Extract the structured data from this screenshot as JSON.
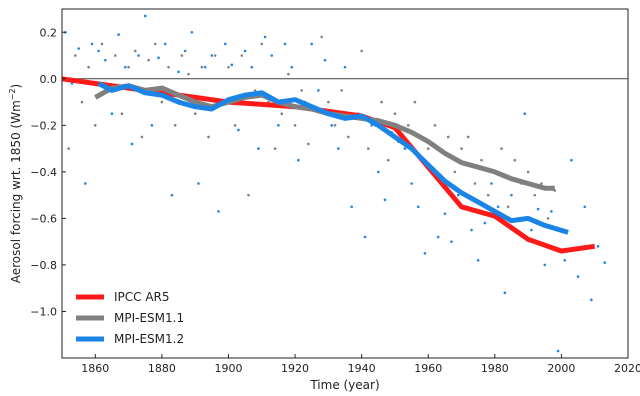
{
  "chart_data": {
    "type": "line",
    "xlabel": "Time (year)",
    "ylabel": "Aerosol forcing wrt. 1850 (Wm",
    "ylabel_sup": "−2",
    "ylabel_close": ")",
    "xlim": [
      1850,
      2020
    ],
    "ylim": [
      -1.2,
      0.3
    ],
    "xticks": [
      1860,
      1880,
      1900,
      1920,
      1940,
      1960,
      1980,
      2000,
      2020
    ],
    "yticks": [
      0.2,
      0.0,
      -0.2,
      -0.4,
      -0.6,
      -0.8,
      -1.0
    ],
    "ytick_labels": [
      "0.2",
      "0.0",
      "−0.2",
      "−0.4",
      "−0.6",
      "−0.8",
      "−1.0"
    ],
    "zero_line": true,
    "grid": false,
    "legend_position": "lower-left",
    "series": [
      {
        "name": "IPCC AR5",
        "color": "#ff1a1a",
        "x": [
          1850,
          1860,
          1870,
          1880,
          1890,
          1900,
          1910,
          1920,
          1930,
          1940,
          1950,
          1960,
          1970,
          1980,
          1990,
          2000,
          2010
        ],
        "y": [
          0.0,
          -0.02,
          -0.04,
          -0.06,
          -0.08,
          -0.1,
          -0.11,
          -0.12,
          -0.14,
          -0.16,
          -0.21,
          -0.38,
          -0.55,
          -0.59,
          -0.69,
          -0.74,
          -0.72
        ]
      },
      {
        "name": "MPI-ESM1.1",
        "color": "#808080",
        "x": [
          1860,
          1865,
          1870,
          1875,
          1880,
          1885,
          1890,
          1895,
          1900,
          1905,
          1910,
          1915,
          1920,
          1925,
          1930,
          1935,
          1940,
          1945,
          1950,
          1955,
          1960,
          1965,
          1970,
          1975,
          1980,
          1985,
          1990,
          1995,
          1998
        ],
        "y": [
          -0.08,
          -0.04,
          -0.03,
          -0.05,
          -0.04,
          -0.07,
          -0.1,
          -0.12,
          -0.1,
          -0.08,
          -0.07,
          -0.1,
          -0.12,
          -0.13,
          -0.15,
          -0.16,
          -0.17,
          -0.18,
          -0.2,
          -0.23,
          -0.27,
          -0.32,
          -0.36,
          -0.38,
          -0.4,
          -0.43,
          -0.45,
          -0.47,
          -0.47
        ]
      },
      {
        "name": "MPI-ESM1.2",
        "color": "#1a85e6",
        "x": [
          1861,
          1865,
          1870,
          1875,
          1880,
          1885,
          1890,
          1895,
          1900,
          1905,
          1910,
          1915,
          1920,
          1925,
          1930,
          1935,
          1940,
          1945,
          1950,
          1955,
          1960,
          1965,
          1970,
          1975,
          1980,
          1985,
          1990,
          1995,
          2002
        ],
        "y": [
          -0.02,
          -0.05,
          -0.03,
          -0.06,
          -0.07,
          -0.1,
          -0.12,
          -0.13,
          -0.09,
          -0.07,
          -0.06,
          -0.1,
          -0.09,
          -0.12,
          -0.15,
          -0.17,
          -0.16,
          -0.2,
          -0.25,
          -0.3,
          -0.37,
          -0.44,
          -0.49,
          -0.53,
          -0.57,
          -0.61,
          -0.6,
          -0.63,
          -0.66
        ]
      }
    ],
    "scatter_series": [
      {
        "color": "#1a85e6",
        "x": [
          1851,
          1853,
          1855,
          1857,
          1859,
          1861,
          1863,
          1865,
          1867,
          1869,
          1871,
          1873,
          1875,
          1877,
          1879,
          1881,
          1883,
          1885,
          1887,
          1889,
          1891,
          1893,
          1895,
          1897,
          1899,
          1901,
          1903,
          1905,
          1907,
          1909,
          1911,
          1913,
          1915,
          1917,
          1919,
          1921,
          1923,
          1925,
          1927,
          1929,
          1931,
          1933,
          1935,
          1937,
          1939,
          1941,
          1943,
          1945,
          1947,
          1949,
          1951,
          1953,
          1955,
          1957,
          1959,
          1961,
          1963,
          1965,
          1967,
          1969,
          1971,
          1973,
          1975,
          1977,
          1979,
          1981,
          1983,
          1985,
          1987,
          1989,
          1991,
          1993,
          1995,
          1997,
          1999,
          2001,
          2003,
          2005,
          2007,
          2009,
          2011,
          2013
        ],
        "y": [
          0.2,
          -0.02,
          0.13,
          -0.45,
          0.15,
          0.12,
          0.08,
          -0.15,
          0.19,
          0.05,
          -0.28,
          0.1,
          0.27,
          -0.2,
          0.09,
          0.15,
          -0.5,
          0.03,
          0.12,
          0.2,
          -0.45,
          0.05,
          0.1,
          -0.57,
          0.15,
          0.06,
          -0.22,
          0.12,
          0.05,
          -0.3,
          0.18,
          0.1,
          -0.2,
          0.15,
          0.05,
          -0.35,
          -0.1,
          0.15,
          -0.05,
          0.08,
          -0.2,
          -0.3,
          0.05,
          -0.55,
          -0.15,
          -0.68,
          -0.2,
          -0.4,
          -0.52,
          -0.23,
          -0.27,
          -0.3,
          -0.45,
          -0.55,
          -0.75,
          -0.38,
          -0.68,
          -0.58,
          -0.7,
          -0.5,
          -0.55,
          -0.65,
          -0.78,
          -0.62,
          -0.45,
          -0.55,
          -0.92,
          -0.5,
          -0.6,
          -0.15,
          -0.65,
          -0.56,
          -0.8,
          -0.57,
          -1.17,
          -0.78,
          -0.35,
          -0.85,
          -0.55,
          -0.95,
          -0.72,
          -0.79
        ]
      },
      {
        "color": "#808080",
        "x": [
          1852,
          1854,
          1856,
          1858,
          1860,
          1862,
          1864,
          1866,
          1868,
          1870,
          1872,
          1874,
          1876,
          1878,
          1880,
          1882,
          1884,
          1886,
          1888,
          1890,
          1892,
          1894,
          1896,
          1898,
          1900,
          1902,
          1904,
          1906,
          1908,
          1910,
          1912,
          1914,
          1916,
          1918,
          1920,
          1922,
          1924,
          1926,
          1928,
          1930,
          1932,
          1934,
          1936,
          1938,
          1940,
          1942,
          1944,
          1946,
          1948,
          1950,
          1952,
          1954,
          1956,
          1958,
          1960,
          1962,
          1964,
          1966,
          1968,
          1970,
          1972,
          1974,
          1976,
          1978,
          1980,
          1982,
          1984,
          1986,
          1988,
          1990,
          1992,
          1994,
          1996,
          1998
        ],
        "y": [
          -0.3,
          0.1,
          -0.1,
          0.05,
          -0.2,
          0.15,
          -0.05,
          0.1,
          -0.15,
          0.05,
          0.12,
          -0.25,
          0.08,
          0.15,
          -0.1,
          0.05,
          -0.2,
          0.1,
          0.02,
          -0.15,
          0.05,
          -0.25,
          0.1,
          -0.1,
          0.05,
          -0.2,
          0.1,
          -0.5,
          -0.05,
          0.15,
          -0.1,
          -0.3,
          -0.15,
          0.02,
          -0.2,
          -0.05,
          -0.28,
          -0.12,
          0.18,
          -0.1,
          -0.2,
          -0.05,
          -0.25,
          -0.15,
          0.12,
          -0.3,
          -0.2,
          -0.1,
          -0.35,
          -0.15,
          -0.25,
          -0.2,
          -0.1,
          -0.35,
          -0.3,
          -0.2,
          -0.45,
          -0.25,
          -0.4,
          -0.3,
          -0.25,
          -0.45,
          -0.35,
          -0.5,
          -0.4,
          -0.3,
          -0.55,
          -0.35,
          -0.45,
          -0.4,
          -0.5,
          -0.45,
          -0.6,
          -0.48
        ]
      }
    ]
  }
}
